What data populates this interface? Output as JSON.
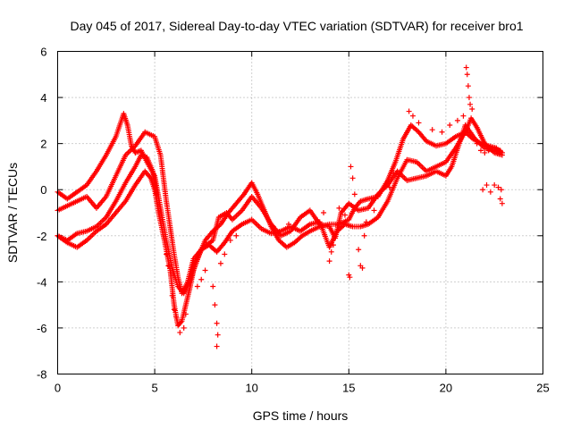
{
  "chart_data": {
    "type": "scatter",
    "title": "Day 045 of 2017, Sidereal Day-to-day VTEC variation (SDTVAR) for receiver bro1",
    "xlabel": "GPS time / hours",
    "ylabel": "SDTVAR / TECUs",
    "xlim": [
      0,
      25
    ],
    "ylim": [
      -8,
      6
    ],
    "xticks": [
      "0",
      "5",
      "10",
      "15",
      "20",
      "25"
    ],
    "yticks": [
      "-8",
      "-6",
      "-4",
      "-2",
      "0",
      "2",
      "4",
      "6"
    ],
    "grid": true,
    "marker": "+",
    "color": "#ff0000",
    "series": [
      {
        "name": "track-1",
        "points": [
          [
            0.0,
            -2.0
          ],
          [
            0.5,
            -2.3
          ],
          [
            1.0,
            -2.5
          ],
          [
            1.5,
            -2.2
          ],
          [
            2.0,
            -1.8
          ],
          [
            2.5,
            -1.5
          ],
          [
            3.0,
            -1.0
          ],
          [
            3.5,
            -0.5
          ],
          [
            4.0,
            0.2
          ],
          [
            4.5,
            0.8
          ],
          [
            4.8,
            0.5
          ],
          [
            5.0,
            0.0
          ],
          [
            5.2,
            -1.0
          ],
          [
            5.5,
            -2.2
          ],
          [
            5.8,
            -3.5
          ],
          [
            6.0,
            -5.0
          ],
          [
            6.2,
            -5.9
          ],
          [
            6.4,
            -5.7
          ],
          [
            6.6,
            -5.0
          ],
          [
            6.8,
            -4.3
          ],
          [
            7.0,
            -3.5
          ],
          [
            7.3,
            -2.8
          ],
          [
            7.6,
            -2.2
          ],
          [
            8.0,
            -1.8
          ],
          [
            8.4,
            -1.5
          ],
          [
            8.8,
            -1.0
          ],
          [
            9.2,
            -0.6
          ],
          [
            9.6,
            -0.2
          ],
          [
            10.0,
            0.3
          ],
          [
            10.3,
            -0.2
          ],
          [
            10.6,
            -0.8
          ],
          [
            11.0,
            -1.6
          ],
          [
            11.4,
            -2.2
          ],
          [
            11.8,
            -2.5
          ],
          [
            12.2,
            -2.3
          ],
          [
            12.6,
            -2.0
          ],
          [
            13.0,
            -1.8
          ],
          [
            13.5,
            -1.6
          ],
          [
            14.0,
            -1.5
          ],
          [
            14.5,
            -1.5
          ],
          [
            15.0,
            -1.3
          ],
          [
            15.3,
            -0.8
          ],
          [
            15.6,
            -0.5
          ],
          [
            16.0,
            -0.4
          ],
          [
            16.5,
            -0.3
          ],
          [
            17.0,
            0.4
          ],
          [
            17.4,
            1.2
          ],
          [
            17.8,
            2.2
          ],
          [
            18.2,
            2.8
          ],
          [
            18.6,
            2.5
          ],
          [
            19.0,
            2.1
          ],
          [
            19.5,
            1.9
          ],
          [
            20.0,
            2.0
          ],
          [
            20.5,
            2.3
          ],
          [
            21.0,
            2.5
          ],
          [
            21.4,
            2.2
          ],
          [
            21.8,
            2.0
          ],
          [
            22.2,
            1.9
          ],
          [
            22.6,
            1.8
          ],
          [
            22.9,
            1.6
          ]
        ]
      },
      {
        "name": "track-2",
        "points": [
          [
            0.0,
            -0.1
          ],
          [
            0.5,
            -0.4
          ],
          [
            1.0,
            -0.1
          ],
          [
            1.5,
            0.2
          ],
          [
            2.0,
            0.8
          ],
          [
            2.5,
            1.5
          ],
          [
            3.0,
            2.3
          ],
          [
            3.4,
            3.3
          ],
          [
            3.6,
            2.8
          ],
          [
            3.8,
            1.9
          ],
          [
            4.0,
            1.6
          ],
          [
            4.3,
            1.7
          ],
          [
            4.6,
            1.2
          ],
          [
            5.0,
            0.6
          ],
          [
            5.3,
            -0.8
          ],
          [
            5.6,
            -2.2
          ],
          [
            5.9,
            -3.4
          ],
          [
            6.2,
            -4.2
          ],
          [
            6.5,
            -4.5
          ],
          [
            6.8,
            -4.0
          ],
          [
            7.1,
            -3.2
          ],
          [
            7.4,
            -2.6
          ],
          [
            7.8,
            -2.4
          ],
          [
            8.2,
            -2.7
          ],
          [
            8.6,
            -2.3
          ],
          [
            9.0,
            -1.8
          ],
          [
            9.5,
            -1.5
          ],
          [
            10.0,
            -1.3
          ],
          [
            10.5,
            -1.7
          ],
          [
            11.0,
            -1.9
          ],
          [
            11.5,
            -1.8
          ],
          [
            12.0,
            -1.6
          ],
          [
            12.5,
            -1.8
          ],
          [
            13.0,
            -1.5
          ],
          [
            13.5,
            -1.4
          ],
          [
            14.0,
            -2.5
          ],
          [
            14.4,
            -1.8
          ],
          [
            14.8,
            -1.5
          ],
          [
            15.2,
            -1.6
          ],
          [
            15.6,
            -1.6
          ],
          [
            16.0,
            -1.5
          ],
          [
            16.5,
            -1.2
          ],
          [
            17.0,
            -0.5
          ],
          [
            17.5,
            0.5
          ],
          [
            18.0,
            1.3
          ],
          [
            18.5,
            1.2
          ],
          [
            19.0,
            0.8
          ],
          [
            19.5,
            1.0
          ],
          [
            20.0,
            1.2
          ],
          [
            20.5,
            1.8
          ],
          [
            21.0,
            2.5
          ],
          [
            21.3,
            3.1
          ],
          [
            21.6,
            2.7
          ],
          [
            22.0,
            2.0
          ],
          [
            22.5,
            1.6
          ],
          [
            22.9,
            1.5
          ]
        ]
      },
      {
        "name": "track-3",
        "points": [
          [
            0.0,
            -0.9
          ],
          [
            0.5,
            -0.7
          ],
          [
            1.0,
            -0.5
          ],
          [
            1.5,
            -0.3
          ],
          [
            2.0,
            -0.8
          ],
          [
            2.5,
            -0.3
          ],
          [
            3.0,
            0.6
          ],
          [
            3.5,
            1.5
          ],
          [
            4.0,
            1.9
          ],
          [
            4.5,
            2.5
          ],
          [
            5.0,
            2.3
          ],
          [
            5.3,
            1.5
          ],
          [
            5.6,
            -0.5
          ],
          [
            6.0,
            -2.8
          ],
          [
            6.2,
            -3.8
          ],
          [
            6.4,
            -4.5
          ],
          [
            6.7,
            -4.0
          ],
          [
            7.0,
            -3.0
          ],
          [
            7.5,
            -2.5
          ],
          [
            8.0,
            -2.2
          ],
          [
            8.3,
            -1.2
          ],
          [
            8.7,
            -1.0
          ],
          [
            9.0,
            -1.3
          ],
          [
            9.5,
            -0.9
          ],
          [
            10.0,
            -0.3
          ],
          [
            10.5,
            -0.8
          ],
          [
            11.0,
            -1.5
          ],
          [
            11.5,
            -2.0
          ],
          [
            12.0,
            -1.8
          ],
          [
            12.5,
            -1.2
          ],
          [
            13.0,
            -0.9
          ],
          [
            13.5,
            -1.5
          ],
          [
            14.0,
            -1.6
          ],
          [
            14.3,
            -2.1
          ],
          [
            14.6,
            -1.0
          ],
          [
            15.0,
            -0.6
          ],
          [
            15.5,
            -0.9
          ],
          [
            16.0,
            -0.8
          ],
          [
            16.5,
            -0.2
          ],
          [
            17.0,
            0.2
          ],
          [
            17.5,
            0.8
          ],
          [
            18.0,
            0.4
          ],
          [
            18.5,
            0.5
          ],
          [
            19.0,
            0.6
          ],
          [
            19.5,
            0.8
          ],
          [
            20.0,
            0.6
          ],
          [
            20.3,
            1.0
          ],
          [
            21.0,
            2.8
          ],
          [
            21.5,
            2.2
          ],
          [
            22.0,
            1.8
          ],
          [
            22.5,
            1.7
          ],
          [
            22.9,
            1.6
          ]
        ]
      },
      {
        "name": "track-4",
        "points": [
          [
            0.0,
            -2.0
          ],
          [
            0.5,
            -2.2
          ],
          [
            1.0,
            -1.9
          ],
          [
            1.5,
            -1.8
          ],
          [
            2.0,
            -1.6
          ],
          [
            2.5,
            -1.2
          ],
          [
            3.0,
            -0.5
          ],
          [
            3.5,
            0.3
          ],
          [
            4.0,
            1.0
          ],
          [
            4.3,
            1.5
          ],
          [
            4.6,
            1.4
          ],
          [
            4.9,
            0.8
          ],
          [
            5.1,
            -0.2
          ]
        ]
      },
      {
        "name": "scatter-spikes",
        "points": [
          [
            5.6,
            -2.8
          ],
          [
            5.7,
            -3.3
          ],
          [
            5.9,
            -4.6
          ],
          [
            6.0,
            -5.2
          ],
          [
            6.1,
            -5.5
          ],
          [
            6.3,
            -6.2
          ],
          [
            6.5,
            -6.0
          ],
          [
            6.6,
            -5.4
          ],
          [
            7.2,
            -4.2
          ],
          [
            7.4,
            -3.9
          ],
          [
            7.6,
            -3.5
          ],
          [
            8.0,
            -4.2
          ],
          [
            8.1,
            -5.0
          ],
          [
            8.2,
            -5.8
          ],
          [
            8.25,
            -6.3
          ],
          [
            8.2,
            -6.8
          ],
          [
            8.4,
            -3.2
          ],
          [
            8.6,
            -2.8
          ],
          [
            8.9,
            -2.2
          ],
          [
            9.2,
            -2.0
          ],
          [
            10.6,
            -0.9
          ],
          [
            11.1,
            -1.6
          ],
          [
            11.9,
            -1.5
          ],
          [
            13.7,
            -1.0
          ],
          [
            14.0,
            -3.1
          ],
          [
            14.1,
            -2.7
          ],
          [
            14.2,
            -2.4
          ],
          [
            14.5,
            -0.8
          ],
          [
            14.8,
            -1.1
          ],
          [
            15.0,
            -3.7
          ],
          [
            15.05,
            -3.8
          ],
          [
            15.1,
            1.0
          ],
          [
            15.2,
            0.5
          ],
          [
            15.3,
            -0.2
          ],
          [
            15.5,
            -2.6
          ],
          [
            15.6,
            -3.3
          ],
          [
            15.7,
            -3.4
          ],
          [
            15.8,
            -2.0
          ],
          [
            15.9,
            -1.4
          ],
          [
            16.3,
            -0.9
          ],
          [
            17.1,
            0.1
          ],
          [
            17.3,
            0.7
          ],
          [
            18.1,
            3.4
          ],
          [
            18.3,
            3.2
          ],
          [
            18.6,
            2.9
          ],
          [
            19.3,
            2.6
          ],
          [
            19.8,
            2.5
          ],
          [
            20.2,
            2.8
          ],
          [
            20.6,
            3.0
          ],
          [
            20.9,
            3.2
          ],
          [
            21.05,
            5.3
          ],
          [
            21.1,
            5.0
          ],
          [
            21.15,
            4.5
          ],
          [
            21.2,
            4.0
          ],
          [
            21.25,
            3.7
          ],
          [
            21.35,
            3.5
          ],
          [
            21.6,
            2.0
          ],
          [
            21.8,
            1.7
          ],
          [
            22.0,
            1.6
          ],
          [
            22.2,
            1.7
          ],
          [
            22.4,
            1.8
          ],
          [
            22.6,
            1.8
          ],
          [
            22.8,
            1.7
          ],
          [
            21.9,
            0.0
          ],
          [
            22.1,
            0.2
          ],
          [
            22.3,
            -0.1
          ],
          [
            22.5,
            0.2
          ],
          [
            22.7,
            0.1
          ],
          [
            22.8,
            -0.4
          ],
          [
            22.9,
            -0.6
          ],
          [
            22.85,
            0.0
          ]
        ]
      }
    ]
  }
}
